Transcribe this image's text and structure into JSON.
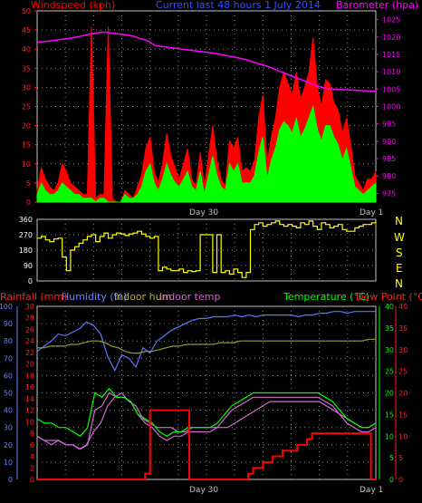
{
  "header": {
    "wind_label": "Windspeed (kph)",
    "title": "Current last 48 hours 1 July 2014",
    "baro_label": "Barometer (hpa)"
  },
  "bottom_header": {
    "rain_label": "Rainfall (mm)",
    "humidity_label": "Humidity (%)",
    "indoor_hum_label": "Indoor hum",
    "indoor_temp_label": "Indoor temp",
    "temp_label": "Temperature (°C)",
    "dew_label": "Dew Point (°C)"
  },
  "day_labels": [
    "Day 30",
    "Day 1"
  ],
  "compass": [
    "N",
    "W",
    "S",
    "E",
    "N"
  ],
  "colors": {
    "wind": "#ff0000",
    "gust": "#ff0000",
    "avg": "#00ff00",
    "baro": "#ff00ff",
    "direction": "#ffff00",
    "rain": "#ff0000",
    "humidity": "#5a78ff",
    "indoor_hum": "#9a9a30",
    "indoor_temp": "#d06ad0",
    "temp": "#00ff00",
    "dew": "#ff0000",
    "grid": "#888888"
  },
  "chart_data": [
    {
      "type": "line",
      "name": "wind-barometer",
      "title": "Current last 48 hours 1 July 2014",
      "xlabel": "",
      "ylabel": "Windspeed (kph)",
      "ylabel_right": "Barometer (hpa)",
      "ylim": [
        0,
        50
      ],
      "ylim_right": [
        972.5,
        1027.5
      ],
      "yticks": [
        0,
        5,
        10,
        15,
        20,
        25,
        30,
        35,
        40,
        45,
        50
      ],
      "yticks_right": [
        975,
        980,
        985,
        990,
        995,
        1000,
        1005,
        1010,
        1015,
        1020,
        1025
      ],
      "x_day_labels": [
        {
          "label": "Day 30",
          "hour": 16
        },
        {
          "label": "Day 1",
          "hour": 40
        }
      ],
      "grid": true,
      "series": [
        {
          "name": "Gust",
          "values": [
            3,
            9,
            6,
            4,
            3,
            5,
            10,
            8,
            5,
            4,
            3,
            2,
            2,
            46,
            1,
            2,
            2,
            46,
            1,
            0,
            0,
            3,
            2,
            1,
            4,
            7,
            14,
            17,
            8,
            5,
            10,
            18,
            12,
            9,
            6,
            10,
            14,
            6,
            4,
            13,
            4,
            12,
            20,
            11,
            6,
            4,
            16,
            14,
            17,
            8,
            9,
            8,
            11,
            22,
            28,
            10,
            17,
            22,
            30,
            34,
            31,
            28,
            34,
            27,
            30,
            34,
            43,
            30,
            25,
            32,
            31,
            26,
            24,
            18,
            22,
            15,
            7,
            5,
            3,
            6,
            6,
            8
          ]
        },
        {
          "name": "Average",
          "values": [
            2,
            5,
            3,
            2,
            2,
            3,
            5,
            4,
            3,
            2,
            2,
            1,
            1,
            1,
            0,
            1,
            1,
            0,
            0,
            0,
            0,
            2,
            1,
            1,
            2,
            4,
            8,
            10,
            5,
            3,
            6,
            10,
            7,
            5,
            4,
            6,
            8,
            4,
            3,
            8,
            2,
            7,
            12,
            7,
            4,
            3,
            10,
            8,
            10,
            5,
            5,
            5,
            7,
            13,
            17,
            6,
            11,
            14,
            19,
            21,
            20,
            18,
            22,
            17,
            19,
            22,
            25,
            19,
            16,
            20,
            20,
            17,
            15,
            11,
            14,
            9,
            4,
            3,
            2,
            3,
            4,
            5
          ]
        },
        {
          "name": "Barometer",
          "values": [
            1018.5,
            1018.6,
            1018.8,
            1019,
            1019.2,
            1019.4,
            1019.6,
            1019.9,
            1020.2,
            1020.5,
            1020.9,
            1021.1,
            1021.4,
            1021.3,
            1021.1,
            1020.9,
            1020.7,
            1020.5,
            1020.2,
            1019.6,
            1019.2,
            1018.5,
            1017.5,
            1017.3,
            1017.1,
            1016.9,
            1016.7,
            1016.5,
            1016.3,
            1016.1,
            1015.9,
            1015.7,
            1015.5,
            1015.3,
            1015,
            1014.7,
            1014.4,
            1014.1,
            1013.8,
            1013.4,
            1012.9,
            1012.4,
            1012,
            1011.5,
            1010.9,
            1010.2,
            1009.6,
            1009,
            1008.4,
            1007.8,
            1007.2,
            1006.6,
            1006,
            1005.5,
            1005.2,
            1005,
            1004.9,
            1004.8,
            1004.8,
            1004.7,
            1004.6,
            1004.5,
            1004.4,
            1004.3
          ]
        }
      ]
    },
    {
      "type": "line",
      "name": "wind-direction",
      "ylim": [
        0,
        360
      ],
      "yticks": [
        0,
        90,
        180,
        270,
        360
      ],
      "right_labels": [
        "N",
        "W",
        "S",
        "E",
        "N"
      ],
      "series": [
        {
          "name": "Direction",
          "values": [
            250,
            260,
            240,
            230,
            245,
            250,
            140,
            60,
            180,
            200,
            220,
            240,
            260,
            270,
            230,
            260,
            280,
            250,
            270,
            280,
            275,
            265,
            275,
            280,
            290,
            275,
            260,
            250,
            260,
            60,
            80,
            70,
            60,
            60,
            70,
            50,
            60,
            55,
            60,
            270,
            270,
            270,
            50,
            270,
            50,
            60,
            40,
            70,
            50,
            20,
            50,
            300,
            330,
            340,
            320,
            330,
            340,
            350,
            330,
            320,
            330,
            320,
            310,
            340,
            330,
            350,
            320,
            300,
            340,
            330,
            310,
            320,
            330,
            300,
            290,
            290,
            310,
            320,
            330,
            330,
            340,
            350
          ]
        }
      ]
    },
    {
      "type": "line",
      "name": "temperature-humidity-rain",
      "ylabel_left1": "Rainfall (mm)",
      "ylabel_left2": "Humidity (%)",
      "ylabel_right1": "Temperature (°C)",
      "ylabel_right2": "Dew Point (°C)",
      "ylim_rain": [
        0,
        30
      ],
      "yticks_rain": [
        0,
        2,
        4,
        6,
        8,
        10,
        12,
        14,
        16,
        18,
        20,
        22,
        24,
        26,
        28,
        30
      ],
      "ylim_humidity": [
        0,
        100
      ],
      "yticks_humidity": [
        0,
        10,
        20,
        30,
        40,
        50,
        60,
        70,
        80,
        90,
        100
      ],
      "ylim_temp": [
        0,
        40
      ],
      "yticks_temp": [
        0,
        5,
        10,
        15,
        20,
        25,
        30,
        35,
        40
      ],
      "x_day_labels": [
        {
          "label": "Day 30",
          "hour": 16
        },
        {
          "label": "Day 1",
          "hour": 40
        }
      ],
      "series": [
        {
          "name": "Humidity",
          "values": [
            74,
            77,
            80,
            84,
            83,
            85,
            87,
            91,
            89,
            84,
            71,
            63,
            72,
            70,
            65,
            76,
            73,
            80,
            83,
            86,
            88,
            90,
            92,
            93,
            93,
            94,
            94,
            94,
            95,
            94,
            95,
            94,
            95,
            95,
            95,
            95,
            95,
            94,
            95,
            95,
            96,
            96,
            97,
            97,
            96,
            97,
            97,
            97,
            97
          ]
        },
        {
          "name": "Indoor hum",
          "values": [
            76,
            76,
            77,
            77,
            77,
            78,
            78,
            79,
            80,
            80,
            79,
            77,
            76,
            74,
            73,
            73,
            74,
            74,
            75,
            76,
            77,
            77,
            78,
            78,
            78,
            78,
            78,
            79,
            79,
            79,
            80,
            80,
            80,
            80,
            80,
            80,
            80,
            80,
            80,
            80,
            80,
            80,
            80,
            80,
            80,
            80,
            80,
            80,
            80,
            81,
            81
          ]
        },
        {
          "name": "Indoor temp",
          "values": [
            10,
            9,
            8,
            9,
            8,
            8,
            7,
            8,
            11,
            13,
            17,
            19,
            20,
            18,
            17,
            14,
            13,
            12,
            12,
            12,
            11,
            11,
            12,
            12,
            12,
            12,
            12,
            12,
            13,
            14,
            15,
            16,
            17,
            18,
            18,
            18,
            18,
            18,
            18,
            18,
            18,
            17,
            16,
            15,
            14,
            13,
            12,
            12,
            13
          ]
        },
        {
          "name": "Temperature",
          "values": [
            14,
            13,
            13,
            12,
            12,
            11,
            10,
            12,
            20,
            19,
            21,
            19,
            19,
            18,
            15,
            14,
            13,
            11,
            10,
            11,
            11,
            12,
            12,
            12,
            12,
            13,
            15,
            17,
            18,
            19,
            20,
            20,
            20,
            20,
            20,
            20,
            20,
            20,
            20,
            20,
            19,
            18,
            16,
            14,
            13,
            12,
            12,
            13
          ]
        },
        {
          "name": "Dew Point",
          "values": [
            10,
            9,
            9,
            9,
            8,
            8,
            7,
            8,
            16,
            17,
            20,
            19,
            19,
            18,
            15,
            13,
            12,
            10,
            9,
            10,
            10,
            11,
            11,
            11,
            11,
            12,
            14,
            16,
            17,
            18,
            19,
            19,
            19,
            19,
            19,
            19,
            19,
            19,
            19,
            19,
            18,
            17,
            15,
            13,
            12,
            11,
            11,
            12
          ]
        },
        {
          "name": "Rainfall",
          "values": [
            0,
            0,
            0,
            0,
            0,
            0,
            0,
            0,
            0,
            0,
            0,
            0,
            0,
            0,
            0,
            0,
            0,
            0,
            0,
            0,
            0,
            0,
            1,
            12,
            12,
            12,
            12,
            12,
            12,
            12,
            12,
            0,
            0,
            0,
            0,
            0,
            0,
            0,
            0,
            0,
            0,
            0,
            0,
            1,
            2,
            2,
            3,
            3,
            4,
            4,
            5,
            5,
            5,
            6,
            6,
            7,
            8,
            8,
            8,
            8,
            8,
            8,
            8,
            8,
            8,
            8,
            8,
            8,
            0,
            0
          ]
        }
      ]
    }
  ]
}
